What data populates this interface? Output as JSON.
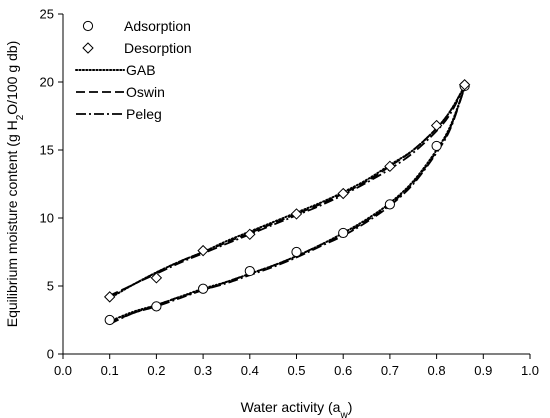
{
  "chart_data": {
    "type": "scatter",
    "title": "",
    "xlabel": "Water activity (a",
    "xlabel_sub": "w",
    "xlabel_end": ")",
    "ylabel_pre": "Equilibrium moisture content (g H",
    "ylabel_sub": "2",
    "ylabel_post": "O/100 g db)",
    "xlim": [
      0.0,
      1.0
    ],
    "ylim": [
      0,
      25
    ],
    "xticks": [
      "0.0",
      "0.1",
      "0.2",
      "0.3",
      "0.4",
      "0.5",
      "0.6",
      "0.7",
      "0.8",
      "0.9",
      "1.0"
    ],
    "yticks": [
      "0",
      "5",
      "10",
      "15",
      "20",
      "25"
    ],
    "grid": false,
    "legend_position": "top-left",
    "series": [
      {
        "name": "Adsorption",
        "kind": "marker",
        "marker": "circle",
        "x": [
          0.1,
          0.2,
          0.3,
          0.4,
          0.5,
          0.6,
          0.7,
          0.8,
          0.86
        ],
        "y": [
          2.5,
          3.5,
          4.8,
          6.1,
          7.5,
          8.9,
          11.0,
          15.3,
          19.7
        ]
      },
      {
        "name": "Desorption",
        "kind": "marker",
        "marker": "diamond",
        "x": [
          0.1,
          0.2,
          0.3,
          0.4,
          0.5,
          0.6,
          0.7,
          0.8,
          0.86
        ],
        "y": [
          4.2,
          5.6,
          7.6,
          8.8,
          10.3,
          11.8,
          13.8,
          16.8,
          19.8
        ]
      },
      {
        "name": "GAB",
        "kind": "line",
        "dash": "dotted",
        "curves": [
          {
            "x": [
              0.1,
              0.15,
              0.2,
              0.25,
              0.3,
              0.35,
              0.4,
              0.45,
              0.5,
              0.55,
              0.6,
              0.65,
              0.7,
              0.75,
              0.8,
              0.83,
              0.86
            ],
            "y": [
              2.4,
              3.1,
              3.6,
              4.2,
              4.8,
              5.3,
              5.9,
              6.5,
              7.2,
              8.0,
              8.9,
              9.9,
              11.1,
              12.7,
              15.0,
              16.8,
              19.6
            ]
          },
          {
            "x": [
              0.1,
              0.15,
              0.2,
              0.25,
              0.3,
              0.35,
              0.4,
              0.45,
              0.5,
              0.55,
              0.6,
              0.65,
              0.7,
              0.75,
              0.8,
              0.83,
              0.86
            ],
            "y": [
              4.1,
              5.1,
              6.0,
              6.8,
              7.5,
              8.3,
              9.0,
              9.7,
              10.4,
              11.1,
              11.9,
              12.8,
              13.9,
              15.0,
              16.6,
              17.9,
              19.7
            ]
          }
        ]
      },
      {
        "name": "Oswin",
        "kind": "line",
        "dash": "dashed",
        "curves": [
          {
            "x": [
              0.1,
              0.15,
              0.2,
              0.25,
              0.3,
              0.35,
              0.4,
              0.45,
              0.5,
              0.55,
              0.6,
              0.65,
              0.7,
              0.75,
              0.8,
              0.83,
              0.86
            ],
            "y": [
              2.3,
              3.0,
              3.6,
              4.2,
              4.7,
              5.3,
              5.9,
              6.5,
              7.2,
              8.0,
              8.8,
              9.8,
              11.0,
              12.6,
              14.9,
              16.7,
              19.6
            ]
          },
          {
            "x": [
              0.1,
              0.15,
              0.2,
              0.25,
              0.3,
              0.35,
              0.4,
              0.45,
              0.5,
              0.55,
              0.6,
              0.65,
              0.7,
              0.75,
              0.8,
              0.83,
              0.86
            ],
            "y": [
              4.3,
              5.1,
              6.0,
              6.8,
              7.5,
              8.2,
              8.9,
              9.6,
              10.3,
              11.0,
              11.8,
              12.7,
              13.8,
              15.0,
              16.6,
              17.9,
              19.7
            ]
          }
        ]
      },
      {
        "name": "Peleg",
        "kind": "line",
        "dash": "dashdot",
        "curves": [
          {
            "x": [
              0.1,
              0.15,
              0.2,
              0.25,
              0.3,
              0.35,
              0.4,
              0.45,
              0.5,
              0.55,
              0.6,
              0.65,
              0.7,
              0.75,
              0.8,
              0.83,
              0.86
            ],
            "y": [
              2.2,
              3.0,
              3.5,
              4.1,
              4.7,
              5.2,
              5.8,
              6.4,
              7.1,
              7.9,
              8.7,
              9.7,
              10.9,
              12.5,
              14.8,
              16.6,
              19.6
            ]
          },
          {
            "x": [
              0.1,
              0.15,
              0.2,
              0.25,
              0.3,
              0.35,
              0.4,
              0.45,
              0.5,
              0.55,
              0.6,
              0.65,
              0.7,
              0.75,
              0.8,
              0.83,
              0.86
            ],
            "y": [
              4.2,
              5.1,
              5.9,
              6.7,
              7.4,
              8.1,
              8.8,
              9.5,
              10.2,
              10.9,
              11.7,
              12.6,
              13.6,
              14.8,
              16.4,
              17.7,
              19.7
            ]
          }
        ]
      }
    ]
  }
}
